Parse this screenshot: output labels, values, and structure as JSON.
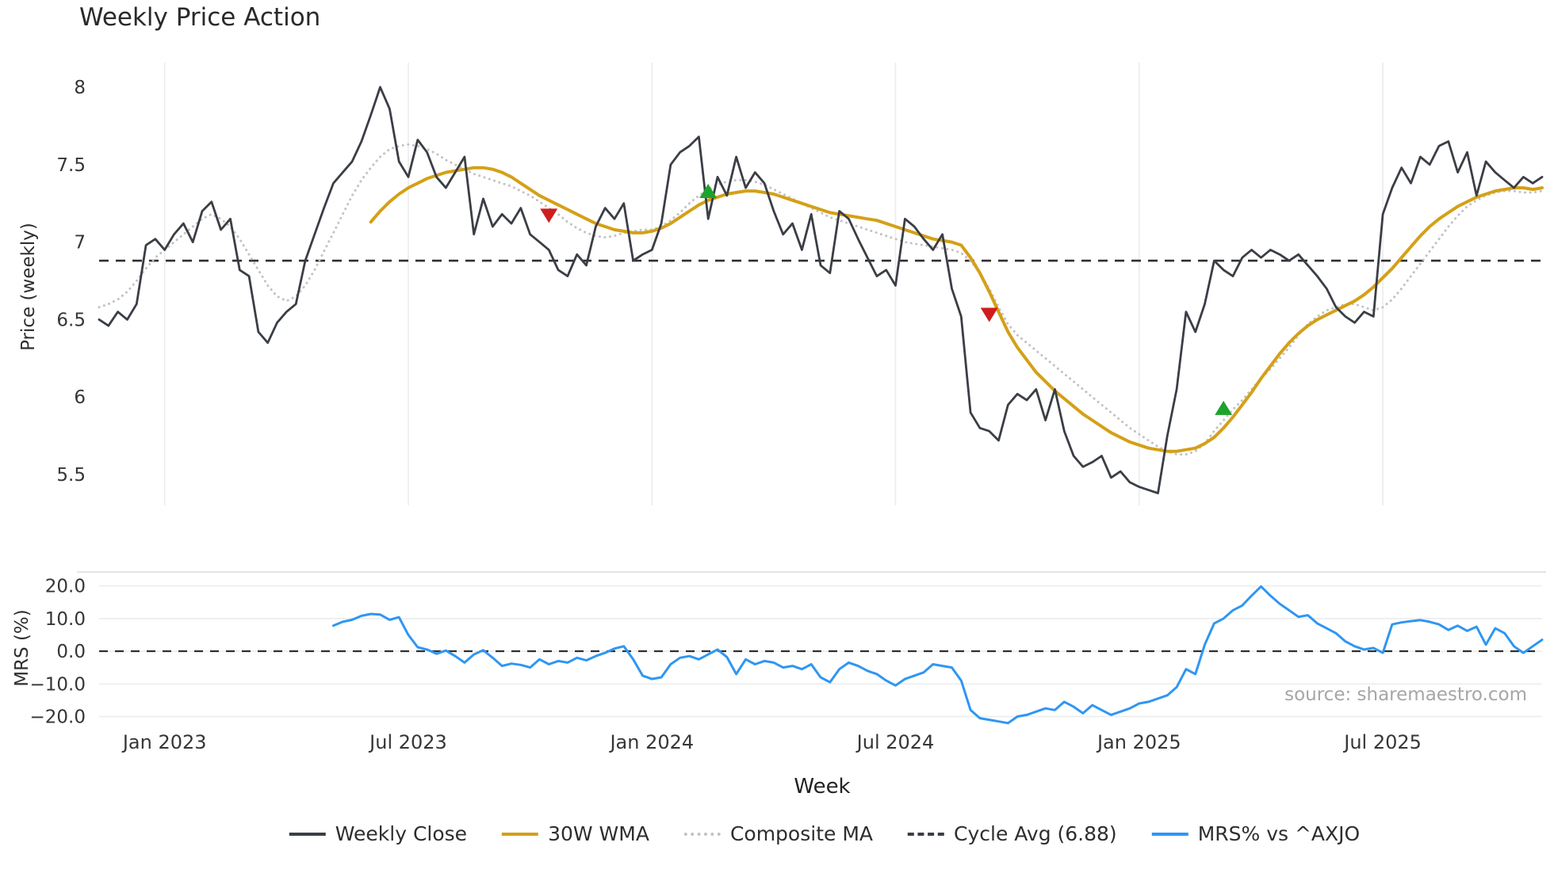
{
  "page": {
    "title": "Weekly Price Action",
    "xlabel": "Week",
    "source": "source: sharemaestro.com"
  },
  "legend": {
    "items": [
      {
        "label": "Weekly Close",
        "color": "#3a3e45",
        "style": "solid"
      },
      {
        "label": "30W WMA",
        "color": "#d4a017",
        "style": "solid"
      },
      {
        "label": "Composite MA",
        "color": "#c2c2c2",
        "style": "dotted"
      },
      {
        "label": "Cycle Avg (6.88)",
        "color": "#3a3e45",
        "style": "dashed"
      },
      {
        "label": "MRS% vs ^AXJO",
        "color": "#2f96f2",
        "style": "solid"
      }
    ]
  },
  "chart_data": [
    {
      "type": "line",
      "title": "Weekly Price Action",
      "xlabel": "Week",
      "ylabel": "Price (weekly)",
      "ylim": [
        5.3,
        8.16
      ],
      "yticks": [
        8,
        7.5,
        7,
        6.5,
        6,
        5.5
      ],
      "ytick_labels": [
        "8",
        "7.5",
        "7",
        "6.5",
        "6",
        "5.5"
      ],
      "xticks": [
        7,
        33,
        59,
        85,
        111,
        137
      ],
      "xtick_labels": [
        "Jan 2023",
        "Jul 2023",
        "Jan 2024",
        "Jul 2024",
        "Jan 2025",
        "Jul 2025"
      ],
      "n_weeks": 155,
      "grid": "vertical",
      "cycle_avg": 6.88,
      "cycle_avg_color": "#2f2f2f",
      "series": [
        {
          "name": "Weekly Close",
          "color": "#3a3e45",
          "width": 2.8,
          "dash": "solid",
          "start": 0,
          "values": [
            6.5,
            6.46,
            6.55,
            6.5,
            6.6,
            6.98,
            7.02,
            6.95,
            7.05,
            7.12,
            7.0,
            7.2,
            7.26,
            7.08,
            7.15,
            6.82,
            6.78,
            6.42,
            6.35,
            6.48,
            6.55,
            6.6,
            6.88,
            7.05,
            7.22,
            7.38,
            7.45,
            7.52,
            7.65,
            7.82,
            8.0,
            7.86,
            7.52,
            7.42,
            7.66,
            7.58,
            7.42,
            7.35,
            7.45,
            7.55,
            7.05,
            7.28,
            7.1,
            7.18,
            7.12,
            7.22,
            7.05,
            7.0,
            6.95,
            6.82,
            6.78,
            6.92,
            6.85,
            7.1,
            7.22,
            7.15,
            7.25,
            6.88,
            6.92,
            6.95,
            7.12,
            7.5,
            7.58,
            7.62,
            7.68,
            7.15,
            7.42,
            7.3,
            7.55,
            7.35,
            7.45,
            7.38,
            7.2,
            7.05,
            7.12,
            6.95,
            7.18,
            6.85,
            6.8,
            7.2,
            7.15,
            7.02,
            6.9,
            6.78,
            6.82,
            6.72,
            7.15,
            7.1,
            7.02,
            6.95,
            7.05,
            6.7,
            6.52,
            5.9,
            5.8,
            5.78,
            5.72,
            5.95,
            6.02,
            5.98,
            6.05,
            5.85,
            6.05,
            5.78,
            5.62,
            5.55,
            5.58,
            5.62,
            5.48,
            5.52,
            5.45,
            5.42,
            5.4,
            5.38,
            5.75,
            6.05,
            6.55,
            6.42,
            6.6,
            6.88,
            6.82,
            6.78,
            6.9,
            6.95,
            6.9,
            6.95,
            6.92,
            6.88,
            6.92,
            6.85,
            6.78,
            6.7,
            6.58,
            6.52,
            6.48,
            6.55,
            6.52,
            7.18,
            7.35,
            7.48,
            7.38,
            7.55,
            7.5,
            7.62,
            7.65,
            7.45,
            7.58,
            7.3,
            7.52,
            7.45,
            7.4,
            7.35,
            7.42,
            7.38,
            7.42
          ]
        },
        {
          "name": "30W WMA",
          "color": "#d4a017",
          "width": 4,
          "dash": "solid",
          "start": 29,
          "values": [
            7.13,
            7.2,
            7.26,
            7.31,
            7.35,
            7.38,
            7.41,
            7.43,
            7.45,
            7.46,
            7.47,
            7.48,
            7.48,
            7.47,
            7.45,
            7.42,
            7.38,
            7.34,
            7.3,
            7.27,
            7.24,
            7.21,
            7.18,
            7.15,
            7.12,
            7.1,
            7.08,
            7.07,
            7.06,
            7.06,
            7.07,
            7.09,
            7.12,
            7.16,
            7.2,
            7.24,
            7.27,
            7.29,
            7.31,
            7.32,
            7.33,
            7.33,
            7.32,
            7.31,
            7.29,
            7.27,
            7.25,
            7.23,
            7.21,
            7.19,
            7.18,
            7.17,
            7.16,
            7.15,
            7.14,
            7.12,
            7.1,
            7.08,
            7.06,
            7.04,
            7.02,
            7.01,
            7.0,
            6.98,
            6.9,
            6.8,
            6.68,
            6.55,
            6.42,
            6.32,
            6.24,
            6.16,
            6.1,
            6.04,
            5.99,
            5.94,
            5.89,
            5.85,
            5.81,
            5.77,
            5.74,
            5.71,
            5.69,
            5.67,
            5.66,
            5.65,
            5.65,
            5.66,
            5.67,
            5.7,
            5.74,
            5.8,
            5.87,
            5.95,
            6.03,
            6.12,
            6.2,
            6.28,
            6.35,
            6.41,
            6.46,
            6.5,
            6.53,
            6.56,
            6.59,
            6.62,
            6.66,
            6.71,
            6.77,
            6.83,
            6.9,
            6.97,
            7.04,
            7.1,
            7.15,
            7.19,
            7.23,
            7.26,
            7.29,
            7.31,
            7.33,
            7.34,
            7.35,
            7.35,
            7.34,
            7.35
          ]
        },
        {
          "name": "Composite MA",
          "color": "#c2c2c2",
          "width": 3,
          "dash": "dotted",
          "start": 0,
          "values": [
            6.58,
            6.6,
            6.63,
            6.68,
            6.75,
            6.83,
            6.9,
            6.95,
            7.0,
            7.05,
            7.1,
            7.15,
            7.18,
            7.15,
            7.1,
            7.02,
            6.92,
            6.82,
            6.72,
            6.65,
            6.62,
            6.65,
            6.72,
            6.82,
            6.94,
            7.06,
            7.18,
            7.3,
            7.4,
            7.48,
            7.55,
            7.6,
            7.62,
            7.63,
            7.62,
            7.6,
            7.57,
            7.53,
            7.5,
            7.47,
            7.44,
            7.42,
            7.4,
            7.38,
            7.36,
            7.33,
            7.3,
            7.26,
            7.22,
            7.18,
            7.13,
            7.09,
            7.06,
            7.04,
            7.03,
            7.04,
            7.06,
            7.07,
            7.08,
            7.08,
            7.1,
            7.14,
            7.19,
            7.25,
            7.3,
            7.34,
            7.37,
            7.39,
            7.4,
            7.4,
            7.39,
            7.37,
            7.34,
            7.31,
            7.28,
            7.25,
            7.22,
            7.19,
            7.16,
            7.14,
            7.12,
            7.1,
            7.08,
            7.06,
            7.04,
            7.02,
            7.0,
            6.99,
            6.98,
            6.97,
            6.96,
            6.95,
            6.93,
            6.88,
            6.8,
            6.7,
            6.58,
            6.47,
            6.4,
            6.35,
            6.3,
            6.25,
            6.2,
            6.15,
            6.1,
            6.05,
            6.0,
            5.95,
            5.9,
            5.85,
            5.8,
            5.76,
            5.72,
            5.68,
            5.65,
            5.63,
            5.63,
            5.65,
            5.7,
            5.78,
            5.85,
            5.92,
            5.98,
            6.05,
            6.12,
            6.18,
            6.25,
            6.32,
            6.4,
            6.47,
            6.52,
            6.56,
            6.58,
            6.6,
            6.6,
            6.58,
            6.56,
            6.58,
            6.63,
            6.7,
            6.78,
            6.86,
            6.94,
            7.02,
            7.1,
            7.17,
            7.23,
            7.27,
            7.3,
            7.32,
            7.33,
            7.33,
            7.32,
            7.32,
            7.33
          ]
        }
      ],
      "signals": [
        {
          "type": "sell",
          "week": 48,
          "value": 7.17,
          "color": "#cf1d1d"
        },
        {
          "type": "buy",
          "week": 65,
          "value": 7.33,
          "color": "#1da32c"
        },
        {
          "type": "sell",
          "week": 95,
          "value": 6.53,
          "color": "#cf1d1d"
        },
        {
          "type": "buy",
          "week": 120,
          "value": 5.93,
          "color": "#1da32c"
        }
      ]
    },
    {
      "type": "line",
      "ylabel": "MRS (%)",
      "ylim": [
        -24,
        24
      ],
      "yticks": [
        20,
        10,
        0,
        -10,
        -20
      ],
      "ytick_labels": [
        "20.0",
        "10.0",
        "0.0",
        "−10.0",
        "−20.0"
      ],
      "zero_line": 0,
      "grid": "horizontal",
      "source": "source: sharemaestro.com",
      "series": [
        {
          "name": "MRS% vs ^AXJO",
          "color": "#2f96f2",
          "width": 3,
          "dash": "solid",
          "start": 25,
          "values": [
            7.8,
            9.0,
            9.6,
            10.8,
            11.4,
            11.2,
            9.6,
            10.4,
            5.0,
            1.2,
            0.5,
            -0.8,
            0.2,
            -1.5,
            -3.5,
            -1.0,
            0.3,
            -2.0,
            -4.5,
            -3.8,
            -4.2,
            -5.0,
            -2.5,
            -4.0,
            -3.0,
            -3.5,
            -2.0,
            -2.8,
            -1.5,
            -0.5,
            0.8,
            1.5,
            -2.5,
            -7.5,
            -8.5,
            -8.0,
            -4.0,
            -2.0,
            -1.5,
            -2.5,
            -1.0,
            0.5,
            -1.8,
            -7.0,
            -2.5,
            -4.0,
            -3.0,
            -3.5,
            -5.0,
            -4.5,
            -5.5,
            -4.0,
            -8.0,
            -9.5,
            -5.5,
            -3.5,
            -4.5,
            -6.0,
            -7.0,
            -9.0,
            -10.5,
            -8.5,
            -7.5,
            -6.5,
            -4.0,
            -4.5,
            -5.0,
            -9.0,
            -18.0,
            -20.5,
            -21.0,
            -21.5,
            -22.0,
            -20.0,
            -19.5,
            -18.5,
            -17.5,
            -18.0,
            -15.5,
            -17.0,
            -19.0,
            -16.5,
            -18.0,
            -19.5,
            -18.5,
            -17.5,
            -16.0,
            -15.5,
            -14.5,
            -13.5,
            -11.0,
            -5.5,
            -7.0,
            2.0,
            8.5,
            10.0,
            12.5,
            14.0,
            17.0,
            19.8,
            17.0,
            14.5,
            12.5,
            10.5,
            11.0,
            8.5,
            7.0,
            5.5,
            3.0,
            1.5,
            0.5,
            1.0,
            -0.5,
            8.2,
            8.8,
            9.2,
            9.5,
            9.0,
            8.2,
            6.5,
            7.8,
            6.2,
            7.5,
            2.0,
            7.0,
            5.5,
            1.5,
            -0.5,
            1.5,
            3.5
          ]
        }
      ]
    }
  ]
}
